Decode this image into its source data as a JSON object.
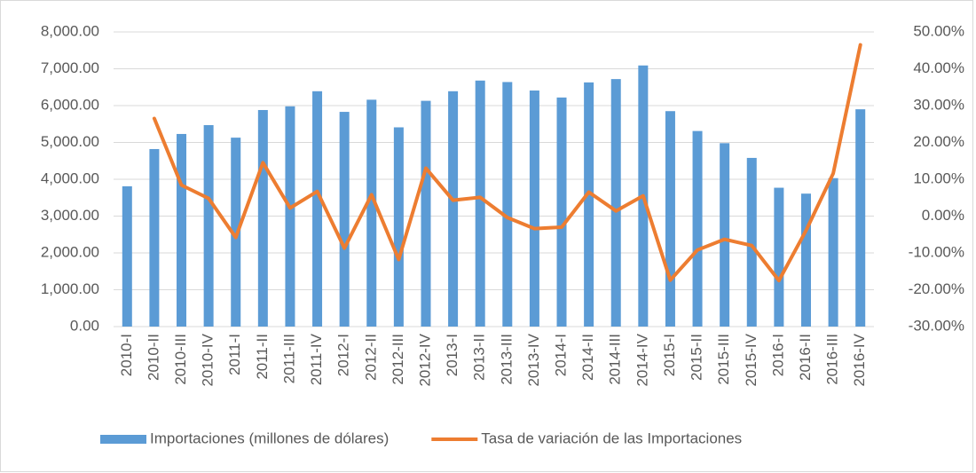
{
  "chart_data": {
    "type": "bar-line",
    "categories": [
      "2010-I",
      "2010-II",
      "2010-III",
      "2010-IV",
      "2011-I",
      "2011-II",
      "2011-III",
      "2011-IV",
      "2012-I",
      "2012-II",
      "2012-III",
      "2012-IV",
      "2013-I",
      "2013-II",
      "2013-III",
      "2013-IV",
      "2014-I",
      "2014-II",
      "2014-III",
      "2014-IV",
      "2015-I",
      "2015-II",
      "2015-III",
      "2015-IV",
      "2016-I",
      "2016-II",
      "2016-III",
      "2016-IV"
    ],
    "series": [
      {
        "name": "Importaciones (millones de dólares)",
        "type": "bar",
        "color": "#5b9bd5",
        "values": [
          3810,
          4820,
          5230,
          5470,
          5130,
          5880,
          5980,
          6390,
          5830,
          6160,
          5410,
          6130,
          6390,
          6680,
          6640,
          6410,
          6220,
          6630,
          6720,
          7090,
          5850,
          5310,
          4980,
          4580,
          3770,
          3610,
          4030,
          5900
        ]
      },
      {
        "name": "Tasa de variación de las Importaciones",
        "type": "line",
        "color": "#ed7d31",
        "axis": "y2",
        "values": [
          null,
          26.5,
          8.4,
          4.8,
          -5.8,
          14.5,
          2.2,
          6.7,
          -8.7,
          5.8,
          -11.8,
          13.0,
          4.3,
          5.1,
          -0.4,
          -3.4,
          -3.0,
          6.5,
          1.4,
          5.5,
          -17.4,
          -9.2,
          -6.3,
          -8.0,
          -17.5,
          -3.9,
          11.6,
          46.5
        ]
      }
    ],
    "ylim": [
      0,
      8000
    ],
    "yticks": [
      {
        "value": 0,
        "label": "0.00"
      },
      {
        "value": 1000,
        "label": "1,000.00"
      },
      {
        "value": 2000,
        "label": "2,000.00"
      },
      {
        "value": 3000,
        "label": "3,000.00"
      },
      {
        "value": 4000,
        "label": "4,000.00"
      },
      {
        "value": 5000,
        "label": "5,000.00"
      },
      {
        "value": 6000,
        "label": "6,000.00"
      },
      {
        "value": 7000,
        "label": "7,000.00"
      },
      {
        "value": 8000,
        "label": "8,000.00"
      }
    ],
    "y2lim": [
      -30,
      50
    ],
    "y2ticks": [
      {
        "value": -30,
        "label": "-30.00%"
      },
      {
        "value": -20,
        "label": "-20.00%"
      },
      {
        "value": -10,
        "label": "-10.00%"
      },
      {
        "value": 0,
        "label": "0.00%"
      },
      {
        "value": 10,
        "label": "10.00%"
      },
      {
        "value": 20,
        "label": "20.00%"
      },
      {
        "value": 30,
        "label": "30.00%"
      },
      {
        "value": 40,
        "label": "40.00%"
      },
      {
        "value": 50,
        "label": "50.00%"
      }
    ],
    "grid": true,
    "legend": "bottom"
  }
}
